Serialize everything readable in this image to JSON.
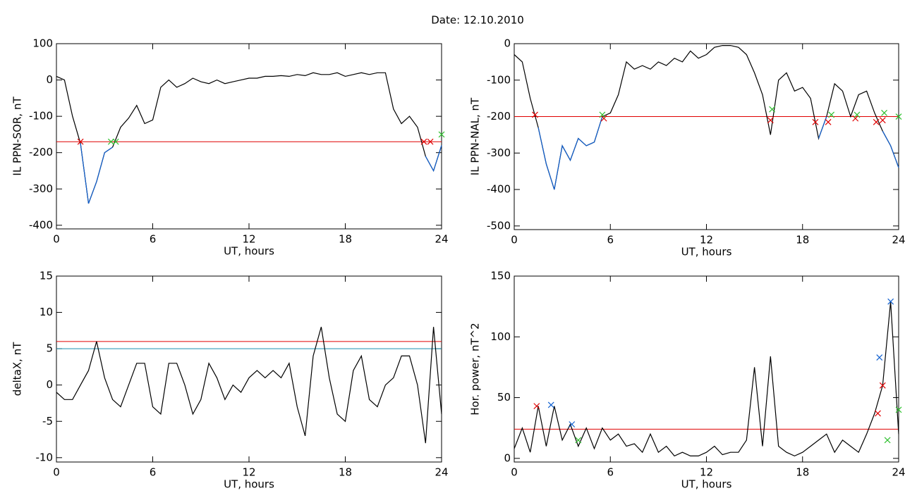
{
  "title": "Date:  12.10.2010",
  "chart_data": [
    {
      "type": "line",
      "ylabel": "IL PPN-SOR, nT",
      "xlabel": "UT, hours",
      "xlim": [
        0,
        24
      ],
      "xticks": [
        0,
        6,
        12,
        18,
        24
      ],
      "ylim": [
        -410,
        100
      ],
      "yticks": [
        -400,
        -300,
        -200,
        -100,
        0,
        100
      ],
      "x": [
        0,
        0.5,
        1,
        1.5,
        2,
        2.5,
        3,
        3.5,
        4,
        4.5,
        5,
        5.5,
        6,
        6.5,
        7,
        7.5,
        8,
        8.5,
        9,
        9.5,
        10,
        10.5,
        11,
        11.5,
        12,
        12.5,
        13,
        13.5,
        14,
        14.5,
        15,
        15.5,
        16,
        16.5,
        17,
        17.5,
        18,
        18.5,
        19,
        19.5,
        20,
        20.5,
        21,
        21.5,
        22,
        22.5,
        23,
        23.5,
        24
      ],
      "series": [
        {
          "color": "#000000",
          "values": [
            10,
            0,
            -100,
            -175,
            -340,
            -280,
            -200,
            -185,
            -130,
            -105,
            -70,
            -120,
            -110,
            -20,
            0,
            -20,
            -10,
            5,
            -5,
            -10,
            0,
            -10,
            -5,
            0,
            5,
            5,
            10,
            10,
            12,
            10,
            15,
            12,
            20,
            15,
            15,
            20,
            10,
            15,
            20,
            15,
            20,
            20,
            -80,
            -120,
            -100,
            -130,
            -210,
            -250,
            -180
          ]
        },
        {
          "color": "#1060d0",
          "values": [
            null,
            null,
            null,
            -175,
            -340,
            -280,
            -200,
            -185,
            null,
            null,
            null,
            null,
            null,
            null,
            null,
            null,
            null,
            null,
            null,
            null,
            null,
            null,
            null,
            null,
            null,
            null,
            null,
            null,
            null,
            null,
            null,
            null,
            null,
            null,
            null,
            null,
            null,
            null,
            null,
            null,
            null,
            null,
            null,
            null,
            null,
            null,
            -210,
            -250,
            -180
          ]
        }
      ],
      "hlines": [
        {
          "value": -170,
          "color": "#e00000"
        }
      ],
      "markers": [
        {
          "color": "#e00000",
          "x": [
            1.5,
            22.9,
            23.3
          ],
          "y": [
            -170,
            -170,
            -170
          ]
        },
        {
          "color": "#30c030",
          "x": [
            3.4,
            3.7,
            24
          ],
          "y": [
            -170,
            -170,
            -150
          ]
        }
      ]
    },
    {
      "type": "line",
      "ylabel": "IL PPN-NAL, nT",
      "xlabel": "UT, hours",
      "xlim": [
        0,
        24
      ],
      "xticks": [
        0,
        6,
        12,
        18,
        24
      ],
      "ylim": [
        -510,
        0
      ],
      "yticks": [
        -500,
        -400,
        -300,
        -200,
        -100,
        0
      ],
      "x": [
        0,
        0.5,
        1,
        1.5,
        2,
        2.5,
        3,
        3.5,
        4,
        4.5,
        5,
        5.5,
        6,
        6.5,
        7,
        7.5,
        8,
        8.5,
        9,
        9.5,
        10,
        10.5,
        11,
        11.5,
        12,
        12.5,
        13,
        13.5,
        14,
        14.5,
        15,
        15.5,
        16,
        16.5,
        17,
        17.5,
        18,
        18.5,
        19,
        19.5,
        20,
        20.5,
        21,
        21.5,
        22,
        22.5,
        23,
        23.5,
        24
      ],
      "series": [
        {
          "color": "#000000",
          "values": [
            -30,
            -50,
            -150,
            -230,
            -330,
            -400,
            -280,
            -320,
            -260,
            -280,
            -270,
            -200,
            -190,
            -140,
            -50,
            -70,
            -60,
            -70,
            -50,
            -60,
            -40,
            -50,
            -20,
            -40,
            -30,
            -10,
            -5,
            -5,
            -10,
            -30,
            -80,
            -140,
            -250,
            -100,
            -80,
            -130,
            -120,
            -150,
            -260,
            -200,
            -110,
            -130,
            -200,
            -140,
            -130,
            -190,
            -240,
            -280,
            -340
          ]
        },
        {
          "color": "#1060d0",
          "values": [
            null,
            null,
            null,
            -230,
            -330,
            -400,
            -280,
            -320,
            -260,
            -280,
            -270,
            -200,
            null,
            null,
            null,
            null,
            null,
            null,
            null,
            null,
            null,
            null,
            null,
            null,
            null,
            null,
            null,
            null,
            null,
            null,
            null,
            null,
            -250,
            null,
            null,
            null,
            null,
            null,
            -260,
            -200,
            null,
            null,
            -200,
            null,
            null,
            null,
            -240,
            -280,
            -340
          ]
        }
      ],
      "hlines": [
        {
          "value": -200,
          "color": "#e00000"
        }
      ],
      "markers": [
        {
          "color": "#e00000",
          "x": [
            1.3,
            5.6,
            16,
            18.8,
            19.6,
            21.3,
            22.6,
            23
          ],
          "y": [
            -195,
            -205,
            -210,
            -215,
            -215,
            -205,
            -215,
            -210
          ]
        },
        {
          "color": "#30c030",
          "x": [
            5.5,
            16.1,
            19.8,
            21.4,
            23.1,
            24
          ],
          "y": [
            -195,
            -180,
            -195,
            -195,
            -190,
            -200
          ]
        }
      ]
    },
    {
      "type": "line",
      "ylabel": "deltaX, nT",
      "xlabel": "UT, hours",
      "xlim": [
        0,
        24
      ],
      "xticks": [
        0,
        6,
        12,
        18,
        24
      ],
      "ylim": [
        -10.6,
        15
      ],
      "yticks": [
        -10,
        -5,
        0,
        5,
        10,
        15
      ],
      "x": [
        0,
        0.5,
        1,
        1.5,
        2,
        2.5,
        3,
        3.5,
        4,
        4.5,
        5,
        5.5,
        6,
        6.5,
        7,
        7.5,
        8,
        8.5,
        9,
        9.5,
        10,
        10.5,
        11,
        11.5,
        12,
        12.5,
        13,
        13.5,
        14,
        14.5,
        15,
        15.5,
        16,
        16.5,
        17,
        17.5,
        18,
        18.5,
        19,
        19.5,
        20,
        20.5,
        21,
        21.5,
        22,
        22.5,
        23,
        23.5,
        24
      ],
      "series": [
        {
          "color": "#000000",
          "values": [
            -1,
            -2,
            -2,
            0,
            2,
            6,
            1,
            -2,
            -3,
            0,
            3,
            3,
            -3,
            -4,
            3,
            3,
            0,
            -4,
            -2,
            3,
            1,
            -2,
            0,
            -1,
            1,
            2,
            1,
            2,
            1,
            3,
            -3,
            -7,
            4,
            8,
            1,
            -4,
            -5,
            2,
            4,
            -2,
            -3,
            0,
            1,
            4,
            4,
            0,
            -8,
            8,
            -4
          ]
        }
      ],
      "hlines": [
        {
          "value": 6,
          "color": "#e00000"
        },
        {
          "value": 5,
          "color": "#1a8fb0"
        }
      ],
      "markers": []
    },
    {
      "type": "line",
      "ylabel": "Hor. power, nT^2",
      "xlabel": "UT, hours",
      "xlim": [
        0,
        24
      ],
      "xticks": [
        0,
        6,
        12,
        18,
        24
      ],
      "ylim": [
        -3,
        150
      ],
      "yticks": [
        0,
        50,
        100,
        150
      ],
      "x": [
        0,
        0.5,
        1,
        1.5,
        2,
        2.5,
        3,
        3.5,
        4,
        4.5,
        5,
        5.5,
        6,
        6.5,
        7,
        7.5,
        8,
        8.5,
        9,
        9.5,
        10,
        10.5,
        11,
        11.5,
        12,
        12.5,
        13,
        13.5,
        14,
        14.5,
        15,
        15.5,
        16,
        16.5,
        17,
        17.5,
        18,
        18.5,
        19,
        19.5,
        20,
        20.5,
        21,
        21.5,
        22,
        22.5,
        23,
        23.5,
        24
      ],
      "series": [
        {
          "color": "#000000",
          "values": [
            8,
            25,
            5,
            43,
            10,
            43,
            15,
            28,
            10,
            25,
            8,
            25,
            15,
            20,
            10,
            12,
            5,
            20,
            5,
            10,
            2,
            5,
            2,
            2,
            5,
            10,
            3,
            5,
            5,
            15,
            75,
            10,
            84,
            10,
            5,
            2,
            5,
            10,
            15,
            20,
            5,
            15,
            10,
            5,
            20,
            37,
            60,
            129,
            20
          ]
        }
      ],
      "hlines": [
        {
          "value": 24,
          "color": "#e00000"
        }
      ],
      "markers": [
        {
          "color": "#e00000",
          "x": [
            1.4,
            22.7,
            23
          ],
          "y": [
            43,
            37,
            60
          ]
        },
        {
          "color": "#1060d0",
          "x": [
            2.3,
            3.6,
            22.8,
            23.5
          ],
          "y": [
            44,
            28,
            83,
            129
          ]
        },
        {
          "color": "#30c030",
          "x": [
            4,
            23.3,
            24
          ],
          "y": [
            15,
            15,
            40
          ]
        }
      ]
    }
  ]
}
